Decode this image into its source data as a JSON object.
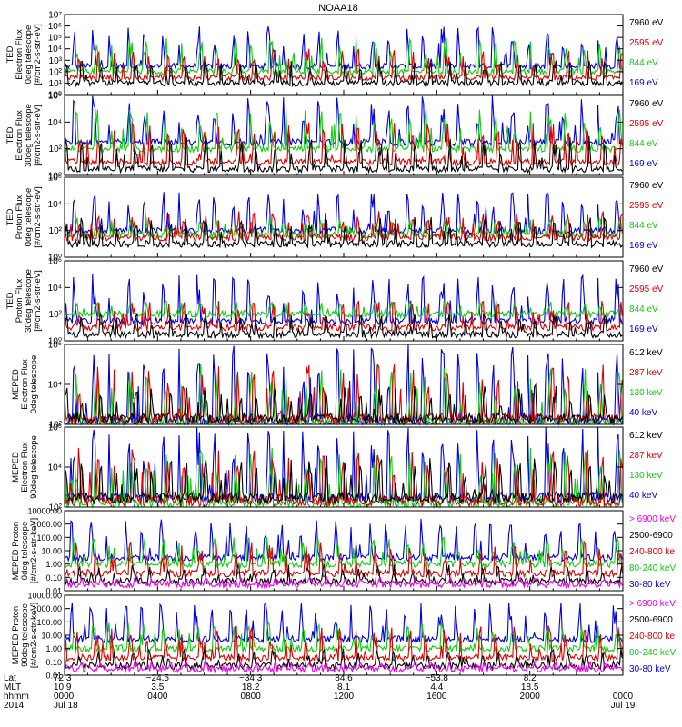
{
  "title": "NOAA18",
  "panels": [
    {
      "ylabel": [
        "TED",
        "Electron Flux",
        "0deg telescope",
        "[#/cm2-s-str-eV]"
      ],
      "ticks": [
        "10⁰",
        "10¹",
        "10²",
        "10³",
        "10⁴",
        "10⁵",
        "10⁶",
        "10⁷"
      ],
      "legend": [
        {
          "text": "7960 eV",
          "color": "#000000"
        },
        {
          "text": "2595 eV",
          "color": "#dd0000"
        },
        {
          "text": "844 eV",
          "color": "#11cc11"
        },
        {
          "text": "169 eV",
          "color": "#0000dd"
        }
      ]
    },
    {
      "ylabel": [
        "TED",
        "Electron Flux",
        "30deg telescope",
        "[#/cm2-s-str-eV]"
      ],
      "ticks": [
        "10⁰",
        "10²",
        "10⁴",
        "10⁶"
      ],
      "legend": [
        {
          "text": "7960 eV",
          "color": "#000000"
        },
        {
          "text": "2595 eV",
          "color": "#dd0000"
        },
        {
          "text": "844 eV",
          "color": "#11cc11"
        },
        {
          "text": "169 eV",
          "color": "#0000dd"
        }
      ]
    },
    {
      "ylabel": [
        "TED",
        "Proton Flux",
        "0deg telescope",
        "[#/cm2-s-str-eV]"
      ],
      "ticks": [
        "10⁰",
        "10²",
        "10⁴",
        "10⁶"
      ],
      "legend": [
        {
          "text": "7960 eV",
          "color": "#000000"
        },
        {
          "text": "2595 eV",
          "color": "#dd0000"
        },
        {
          "text": "844 eV",
          "color": "#11cc11"
        },
        {
          "text": "169 eV",
          "color": "#0000dd"
        }
      ]
    },
    {
      "ylabel": [
        "TED",
        "Proton Flux",
        "30deg telescope",
        "[#/cm2-s-str-eV]"
      ],
      "ticks": [
        "10⁰",
        "10²",
        "10⁴",
        "10⁶"
      ],
      "legend": [
        {
          "text": "7960 eV",
          "color": "#000000"
        },
        {
          "text": "2595 eV",
          "color": "#dd0000"
        },
        {
          "text": "844 eV",
          "color": "#11cc11"
        },
        {
          "text": "169 eV",
          "color": "#0000dd"
        }
      ]
    },
    {
      "ylabel": [
        "MEPED",
        "Electron Flux",
        "0deg telescope"
      ],
      "ticks": [
        "10²",
        "10⁴",
        "10⁶"
      ],
      "legend": [
        {
          "text": "612 keV",
          "color": "#000000"
        },
        {
          "text": "287 keV",
          "color": "#dd0000"
        },
        {
          "text": "130 keV",
          "color": "#11cc11"
        },
        {
          "text": "40 keV",
          "color": "#0000dd"
        }
      ]
    },
    {
      "ylabel": [
        "MEPED",
        "Electron Flux",
        "90deg telescope"
      ],
      "ticks": [
        "10²",
        "10⁴",
        "10⁶"
      ],
      "legend": [
        {
          "text": "612 keV",
          "color": "#000000"
        },
        {
          "text": "287 keV",
          "color": "#dd0000"
        },
        {
          "text": "130 keV",
          "color": "#11cc11"
        },
        {
          "text": "40 keV",
          "color": "#0000dd"
        }
      ]
    },
    {
      "ylabel": [
        "MEPED Proton",
        "0deg telescope",
        "[#/cm2-s-str-keV]"
      ],
      "ticks": [
        "0.01",
        "0.10",
        "1.00",
        "10.00",
        "100.00",
        "1000.00",
        "10000.00"
      ],
      "legend": [
        {
          "text": "> 6900 keV",
          "color": "#ee00ee"
        },
        {
          "text": "2500-6900",
          "color": "#000000"
        },
        {
          "text": "240-800 ke",
          "color": "#dd0000"
        },
        {
          "text": "80-240 keV",
          "color": "#11cc11"
        },
        {
          "text": "30-80 keV",
          "color": "#0000dd"
        }
      ]
    },
    {
      "ylabel": [
        "MEPED Proton",
        "90deg telescope",
        "[#/cm2-s-str-keV]"
      ],
      "ticks": [
        "0.01",
        "0.10",
        "1.00",
        "10.00",
        "100.00",
        "1000.00",
        "10000.00"
      ],
      "legend": [
        {
          "text": "> 6900 keV",
          "color": "#ee00ee"
        },
        {
          "text": "2500-6900",
          "color": "#000000"
        },
        {
          "text": "240-800 ke",
          "color": "#dd0000"
        },
        {
          "text": "80-240 keV",
          "color": "#11cc11"
        },
        {
          "text": "30-80 keV",
          "color": "#0000dd"
        }
      ]
    }
  ],
  "xaxis": {
    "row_labels": [
      "Lat",
      "MLT",
      "hhmm",
      "2014"
    ],
    "columns": [
      {
        "lat": "72.3",
        "mlt": "10.9",
        "hhmm": "0000",
        "date": "Jul 18"
      },
      {
        "lat": "−24.5",
        "mlt": "3.5",
        "hhmm": "0400",
        "date": ""
      },
      {
        "lat": "−34.3",
        "mlt": "18.2",
        "hhmm": "0800",
        "date": ""
      },
      {
        "lat": "84.6",
        "mlt": "8.1",
        "hhmm": "1200",
        "date": ""
      },
      {
        "lat": "−53.8",
        "mlt": "4.4",
        "hhmm": "1600",
        "date": ""
      },
      {
        "lat": "8.2",
        "mlt": "18.5",
        "hhmm": "2000",
        "date": ""
      },
      {
        "lat": "",
        "mlt": "",
        "hhmm": "0000",
        "date": "Jul 19"
      }
    ]
  },
  "chart_data": {
    "type": "line",
    "title": "NOAA18",
    "x_hours": [
      0,
      4,
      8,
      12,
      16,
      20,
      24
    ],
    "xlim_hours": [
      0,
      24
    ],
    "panels": [
      {
        "name": "TED electron 0deg",
        "scale": "log",
        "ylim": [
          1,
          10000000
        ],
        "series": [
          {
            "name": "7960 eV",
            "baseline": 10,
            "peak": 1000
          },
          {
            "name": "2595 eV",
            "baseline": 30,
            "peak": 10000
          },
          {
            "name": "844 eV",
            "baseline": 100,
            "peak": 100000
          },
          {
            "name": "169 eV",
            "baseline": 300,
            "peak": 1000000
          }
        ]
      },
      {
        "name": "TED electron 30deg",
        "scale": "log",
        "ylim": [
          1,
          1000000
        ],
        "series": [
          {
            "name": "7960 eV",
            "baseline": 3,
            "peak": 1000
          },
          {
            "name": "2595 eV",
            "baseline": 10,
            "peak": 10000
          },
          {
            "name": "844 eV",
            "baseline": 100,
            "peak": 100000
          },
          {
            "name": "169 eV",
            "baseline": 300,
            "peak": 1000000
          }
        ]
      },
      {
        "name": "TED proton 0deg",
        "scale": "log",
        "ylim": [
          1,
          1000000
        ],
        "series": [
          {
            "name": "7960 eV",
            "baseline": 10,
            "peak": 1000
          },
          {
            "name": "2595 eV",
            "baseline": 30,
            "peak": 3000
          },
          {
            "name": "844 eV",
            "baseline": 50,
            "peak": 1000
          },
          {
            "name": "169 eV",
            "baseline": 100,
            "peak": 100000
          }
        ]
      },
      {
        "name": "TED proton 30deg",
        "scale": "log",
        "ylim": [
          1,
          1000000
        ],
        "series": [
          {
            "name": "7960 eV",
            "baseline": 3,
            "peak": 100
          },
          {
            "name": "2595 eV",
            "baseline": 10,
            "peak": 1000
          },
          {
            "name": "844 eV",
            "baseline": 100,
            "peak": 1000
          },
          {
            "name": "169 eV",
            "baseline": 30,
            "peak": 100000
          }
        ]
      },
      {
        "name": "MEPED electron 0deg",
        "scale": "log",
        "ylim": [
          100,
          1000000
        ],
        "series": [
          {
            "name": "612 keV",
            "baseline": 200,
            "peak": 10000
          },
          {
            "name": "287 keV",
            "baseline": 200,
            "peak": 100000
          },
          {
            "name": "130 keV",
            "baseline": 120,
            "peak": 100000
          },
          {
            "name": "40 keV",
            "baseline": 150,
            "peak": 1000000
          }
        ]
      },
      {
        "name": "MEPED electron 90deg",
        "scale": "log",
        "ylim": [
          100,
          1000000
        ],
        "series": [
          {
            "name": "612 keV",
            "baseline": 300,
            "peak": 30000
          },
          {
            "name": "287 keV",
            "baseline": 200,
            "peak": 100000
          },
          {
            "name": "130 keV",
            "baseline": 150,
            "peak": 100000
          },
          {
            "name": "40 keV",
            "baseline": 300,
            "peak": 1000000
          }
        ]
      },
      {
        "name": "MEPED proton 0deg",
        "scale": "log",
        "ylim": [
          0.01,
          10000
        ],
        "series": [
          {
            "name": "> 6900 keV",
            "baseline": 0.03,
            "peak": 0.1
          },
          {
            "name": "2500-6900",
            "baseline": 0.05,
            "peak": 1
          },
          {
            "name": "240-800 keV",
            "baseline": 0.2,
            "peak": 50
          },
          {
            "name": "80-240 keV",
            "baseline": 1,
            "peak": 100
          },
          {
            "name": "30-80 keV",
            "baseline": 3,
            "peak": 3000
          }
        ]
      },
      {
        "name": "MEPED proton 90deg",
        "scale": "log",
        "ylim": [
          0.01,
          10000
        ],
        "series": [
          {
            "name": "> 6900 keV",
            "baseline": 0.03,
            "peak": 0.1
          },
          {
            "name": "2500-6900",
            "baseline": 0.05,
            "peak": 1
          },
          {
            "name": "240-800 keV",
            "baseline": 0.2,
            "peak": 50
          },
          {
            "name": "80-240 keV",
            "baseline": 1,
            "peak": 100
          },
          {
            "name": "30-80 keV",
            "baseline": 5,
            "peak": 3000
          }
        ]
      }
    ]
  }
}
